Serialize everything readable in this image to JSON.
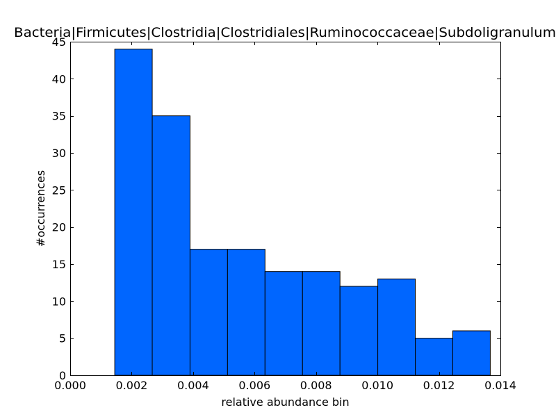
{
  "chart_data": {
    "type": "bar",
    "title": "Bacteria|Firmicutes|Clostridia|Clostridiales|Ruminococcaceae|Subdoligranulum",
    "xlabel": "relative abundance bin",
    "ylabel": "#occurrences",
    "xlim": [
      0.0,
      0.014
    ],
    "ylim": [
      0,
      45
    ],
    "grid": false,
    "bar_color": "#0066ff",
    "bar_edge_color": "#000000",
    "bins": [
      {
        "x0": 0.00145,
        "x1": 0.00267,
        "value": 44
      },
      {
        "x0": 0.00267,
        "x1": 0.0039,
        "value": 35
      },
      {
        "x0": 0.0039,
        "x1": 0.00512,
        "value": 17
      },
      {
        "x0": 0.00512,
        "x1": 0.00634,
        "value": 17
      },
      {
        "x0": 0.00634,
        "x1": 0.00756,
        "value": 14
      },
      {
        "x0": 0.00756,
        "x1": 0.00878,
        "value": 14
      },
      {
        "x0": 0.00878,
        "x1": 0.01001,
        "value": 12
      },
      {
        "x0": 0.01001,
        "x1": 0.01123,
        "value": 13
      },
      {
        "x0": 0.01123,
        "x1": 0.01245,
        "value": 5
      },
      {
        "x0": 0.01245,
        "x1": 0.01367,
        "value": 6
      }
    ],
    "x_ticks": [
      0.0,
      0.002,
      0.004,
      0.006,
      0.008,
      0.01,
      0.012,
      0.014
    ],
    "x_tick_labels": [
      "0.000",
      "0.002",
      "0.004",
      "0.006",
      "0.008",
      "0.010",
      "0.012",
      "0.014"
    ],
    "y_ticks": [
      0,
      5,
      10,
      15,
      20,
      25,
      30,
      35,
      40,
      45
    ],
    "y_tick_labels": [
      "0",
      "5",
      "10",
      "15",
      "20",
      "25",
      "30",
      "35",
      "40",
      "45"
    ]
  }
}
